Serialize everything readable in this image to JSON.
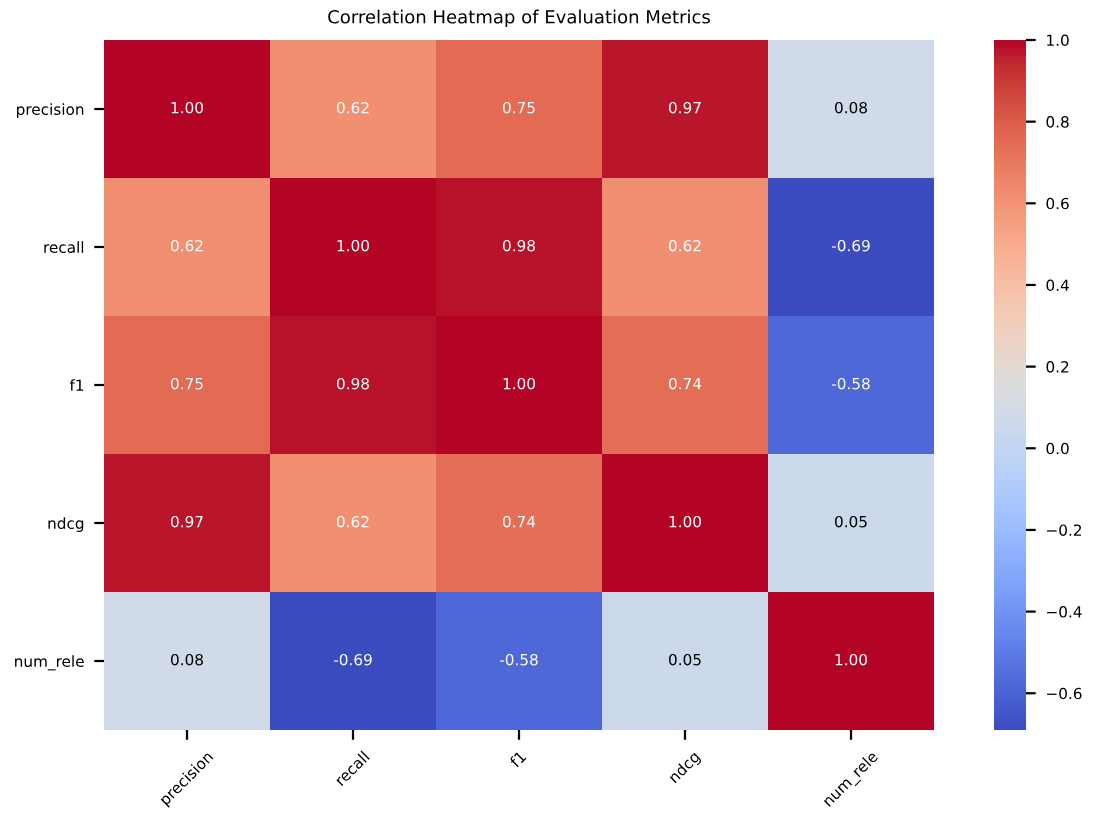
{
  "chart_data": {
    "type": "heatmap",
    "title": "Correlation Heatmap of Evaluation Metrics",
    "categories": [
      "precision",
      "recall",
      "f1",
      "ndcg",
      "num_rele"
    ],
    "y_categories": [
      "precision",
      "recall",
      "f1",
      "ndcg",
      "num_rele"
    ],
    "cells": [
      [
        1.0,
        0.62,
        0.75,
        0.97,
        0.08
      ],
      [
        0.62,
        1.0,
        0.98,
        0.62,
        -0.69
      ],
      [
        0.75,
        0.98,
        1.0,
        0.74,
        -0.58
      ],
      [
        0.97,
        0.62,
        0.74,
        1.0,
        0.05
      ],
      [
        0.08,
        -0.69,
        -0.58,
        0.05,
        1.0
      ]
    ],
    "cell_labels": [
      [
        "1.00",
        "0.62",
        "0.75",
        "0.97",
        "0.08"
      ],
      [
        "0.62",
        "1.00",
        "0.98",
        "0.62",
        "-0.69"
      ],
      [
        "0.75",
        "0.98",
        "1.00",
        "0.74",
        "-0.58"
      ],
      [
        "0.97",
        "0.62",
        "0.74",
        "1.00",
        "0.05"
      ],
      [
        "0.08",
        "-0.69",
        "-0.58",
        "0.05",
        "1.00"
      ]
    ],
    "clim": [
      -0.69,
      1.0
    ],
    "cticks": [
      {
        "value": -0.6,
        "label": "−0.6"
      },
      {
        "value": -0.4,
        "label": "−0.4"
      },
      {
        "value": -0.2,
        "label": "−0.2"
      },
      {
        "value": 0.0,
        "label": "0.0"
      },
      {
        "value": 0.2,
        "label": "0.2"
      },
      {
        "value": 0.4,
        "label": "0.4"
      },
      {
        "value": 0.6,
        "label": "0.6"
      },
      {
        "value": 0.8,
        "label": "0.8"
      },
      {
        "value": 1.0,
        "label": "1.0"
      }
    ]
  }
}
